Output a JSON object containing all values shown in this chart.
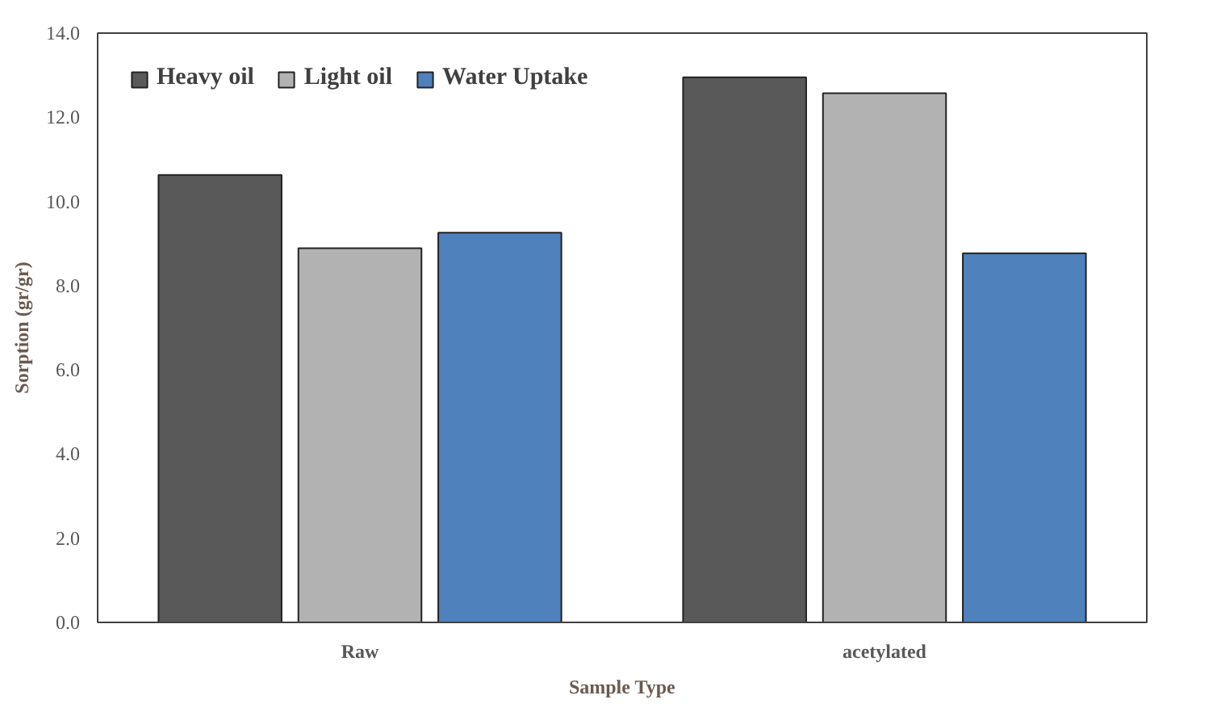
{
  "chart_data": {
    "type": "bar",
    "xlabel": "Sample Type",
    "ylabel": "Sorption (gr/gr)",
    "categories": [
      "Raw",
      "acetylated"
    ],
    "series": [
      {
        "name": "Heavy oil",
        "color": "#595959",
        "values": [
          10.63,
          12.95
        ]
      },
      {
        "name": "Light oil",
        "color": "#b2b2b2",
        "values": [
          8.89,
          12.57
        ]
      },
      {
        "name": "Water Uptake",
        "color": "#4f81bd",
        "values": [
          9.26,
          8.77
        ]
      }
    ],
    "ylim": [
      0,
      14
    ],
    "yticks": [
      {
        "value": 0,
        "label": "0.0"
      },
      {
        "value": 2,
        "label": "2.0"
      },
      {
        "value": 4,
        "label": "4.0"
      },
      {
        "value": 6,
        "label": "6.0"
      },
      {
        "value": 8,
        "label": "8.0"
      },
      {
        "value": 10,
        "label": "10.0"
      },
      {
        "value": 12,
        "label": "12.0"
      },
      {
        "value": 14,
        "label": "14.0"
      }
    ],
    "grid": false,
    "legend": "top left"
  }
}
